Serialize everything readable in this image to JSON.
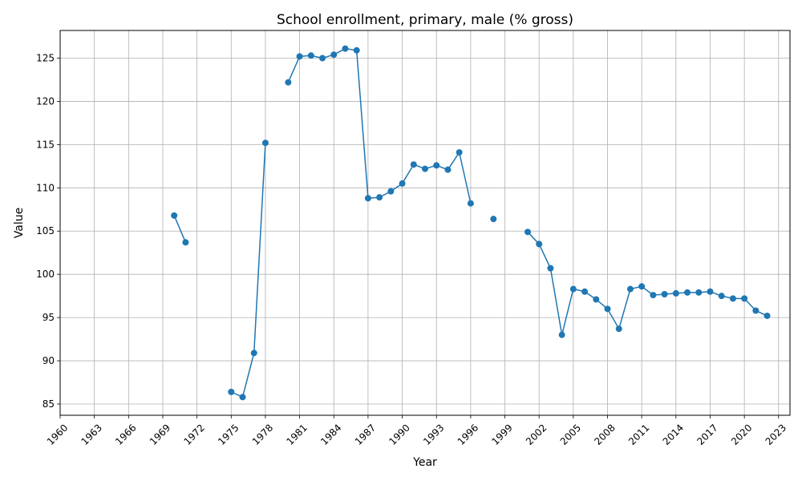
{
  "chart_data": {
    "type": "line",
    "title": "School enrollment, primary, male (% gross)",
    "xlabel": "Year",
    "ylabel": "Value",
    "xlim": [
      1960,
      2024
    ],
    "ylim": [
      83.7,
      128.2
    ],
    "grid": true,
    "x_ticks": [
      "1960",
      "1963",
      "1966",
      "1969",
      "1972",
      "1975",
      "1978",
      "1981",
      "1984",
      "1987",
      "1990",
      "1993",
      "1996",
      "1999",
      "2002",
      "2005",
      "2008",
      "2011",
      "2014",
      "2017",
      "2020",
      "2023"
    ],
    "y_ticks": [
      "85",
      "90",
      "95",
      "100",
      "105",
      "110",
      "115",
      "120",
      "125"
    ],
    "colors": {
      "line": "#1f77b4",
      "marker": "#1f77b4",
      "grid": "#b0b0b0"
    },
    "series": [
      {
        "x": [
          1960,
          1961,
          1962,
          1963,
          1964,
          1965,
          1966,
          1967,
          1968,
          1969,
          1970,
          1971,
          1972,
          1973,
          1974,
          1975,
          1976,
          1977,
          1978,
          1979,
          1980,
          1981,
          1982,
          1983,
          1984,
          1985,
          1986,
          1987,
          1988,
          1989,
          1990,
          1991,
          1992,
          1993,
          1994,
          1995,
          1996,
          1997,
          1998,
          1999,
          2000,
          2001,
          2002,
          2003,
          2004,
          2005,
          2006,
          2007,
          2008,
          2009,
          2010,
          2011,
          2012,
          2013,
          2014,
          2015,
          2016,
          2017,
          2018,
          2019,
          2020,
          2021,
          2022
        ],
        "y": [
          null,
          null,
          null,
          null,
          null,
          null,
          null,
          null,
          null,
          null,
          106.8,
          103.7,
          null,
          null,
          null,
          86.4,
          85.8,
          90.9,
          115.2,
          null,
          122.2,
          125.2,
          125.3,
          125.0,
          125.4,
          126.1,
          125.9,
          108.8,
          108.9,
          109.6,
          110.5,
          112.7,
          112.2,
          112.6,
          112.1,
          114.1,
          108.2,
          null,
          106.4,
          null,
          null,
          104.9,
          103.5,
          100.7,
          93.0,
          98.3,
          98.0,
          97.1,
          96.0,
          93.7,
          98.3,
          98.6,
          97.6,
          97.7,
          97.8,
          97.9,
          97.9,
          98.0,
          97.5,
          97.2,
          97.2,
          95.8,
          95.2
        ]
      }
    ]
  }
}
